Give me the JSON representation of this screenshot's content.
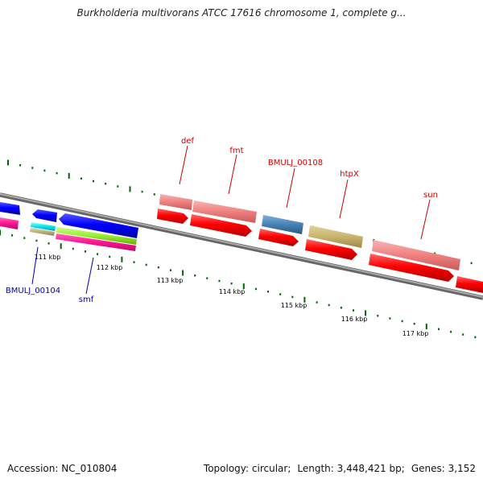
{
  "title": "Burkholderia multivorans ATCC 17616 chromosome 1, complete g...",
  "footer": {
    "accession_label": "Accession:",
    "accession": "NC_010804",
    "topology_label": "Topology:",
    "topology": "circular",
    "length_label": "Length:",
    "length": "3,448,421 bp",
    "genes_label": "Genes:",
    "genes": "3,152"
  },
  "scale_labels": [
    "111 kbp",
    "112 kbp",
    "113 kbp",
    "114 kbp",
    "115 kbp",
    "116 kbp",
    "117 kbp"
  ],
  "gene_labels": [
    {
      "name": "def",
      "color": "#cc0000"
    },
    {
      "name": "fmt",
      "color": "#cc0000"
    },
    {
      "name": "BMULJ_00108",
      "color": "#cc0000"
    },
    {
      "name": "htpX",
      "color": "#cc0000"
    },
    {
      "name": "sun",
      "color": "#cc0000"
    },
    {
      "name": "BMULJ_00104",
      "color": "#0000aa"
    },
    {
      "name": "smf",
      "color": "#0000aa"
    }
  ],
  "colors": {
    "backbone": "#888888",
    "tick": "#006600",
    "cds_forward": "#ff0000",
    "cds_reverse": "#0000ff",
    "gene_salmon": "#f08080",
    "gene_steelblue": "#4682b4",
    "gene_khaki": "#c8b46e",
    "gene_magenta": "#ff1493",
    "gene_lime": "#99ee33",
    "gene_cyan": "#00e5ee",
    "gene_tan": "#bdb17f"
  }
}
